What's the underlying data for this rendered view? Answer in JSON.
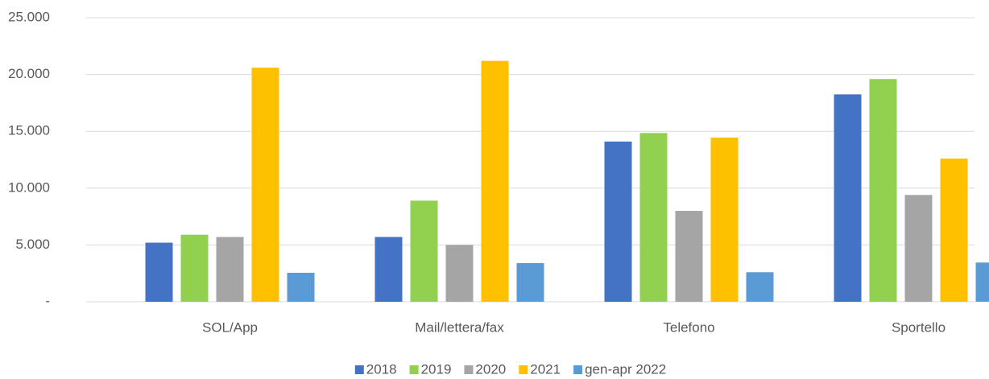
{
  "chart_data": {
    "type": "bar",
    "categories": [
      "SOL/App",
      "Mail/lettera/fax",
      "Telefono",
      "Sportello"
    ],
    "series": [
      {
        "name": "2018",
        "color": "#4472c4",
        "values": [
          5200,
          5700,
          14100,
          18250
        ]
      },
      {
        "name": "2019",
        "color": "#92d050",
        "values": [
          5900,
          8900,
          14850,
          19600
        ]
      },
      {
        "name": "2020",
        "color": "#a5a5a5",
        "values": [
          5700,
          5000,
          8000,
          9400
        ]
      },
      {
        "name": "2021",
        "color": "#ffc000",
        "values": [
          20600,
          21200,
          14450,
          12600
        ]
      },
      {
        "name": "gen-apr 2022",
        "color": "#5b9bd5",
        "values": [
          2550,
          3400,
          2600,
          3450
        ]
      }
    ],
    "ylim": [
      0,
      25000
    ],
    "yticks": [
      {
        "value": 0,
        "label": "-"
      },
      {
        "value": 5000,
        "label": "5.000"
      },
      {
        "value": 10000,
        "label": "10.000"
      },
      {
        "value": 15000,
        "label": "15.000"
      },
      {
        "value": 20000,
        "label": "20.000"
      },
      {
        "value": 25000,
        "label": "25.000"
      }
    ],
    "grid": true,
    "legend": "bottom"
  }
}
